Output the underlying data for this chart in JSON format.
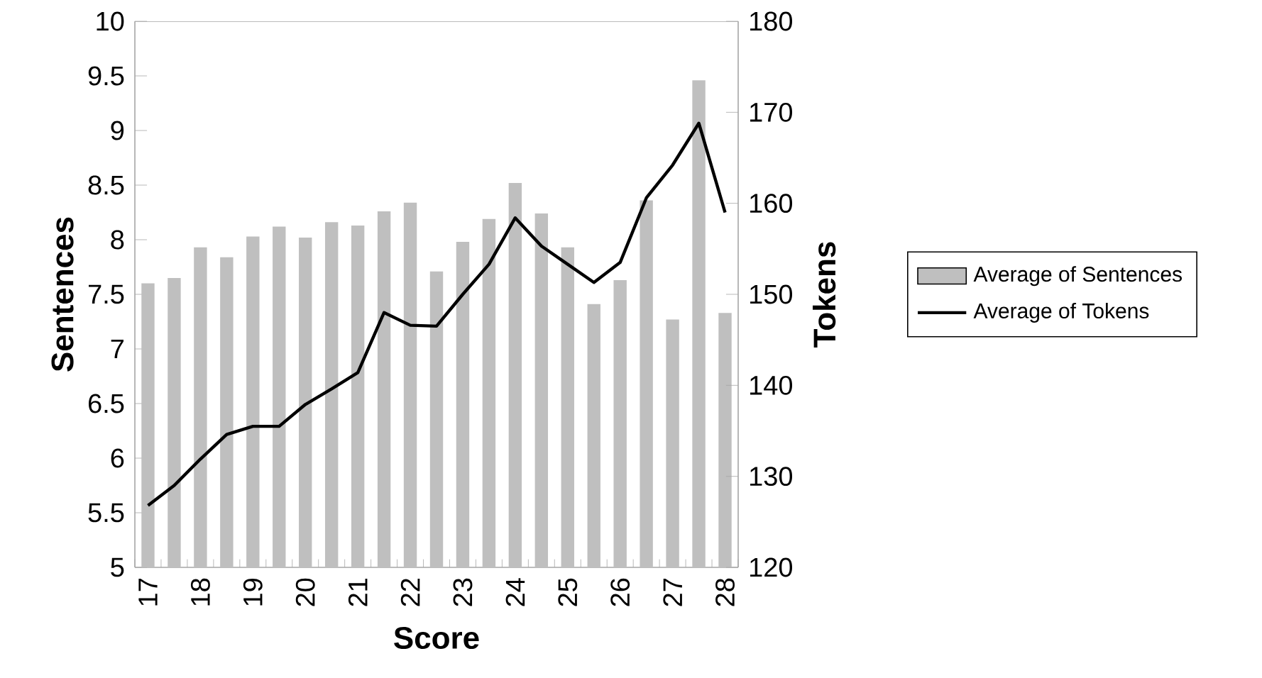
{
  "chart_data": {
    "type": "bar",
    "xlabel": "Score",
    "ylabel": "Sentences",
    "y2label": "Tokens",
    "categories": [
      "17",
      null,
      "18",
      null,
      "19",
      null,
      "20",
      null,
      "21",
      null,
      "22",
      null,
      "23",
      null,
      "24",
      null,
      "25",
      null,
      "26",
      null,
      "27",
      null,
      "28"
    ],
    "series": [
      {
        "name": "Average of Sentences",
        "color": "#bfbfbf",
        "values": [
          7.6,
          7.65,
          7.93,
          7.84,
          8.03,
          8.12,
          8.02,
          8.16,
          8.13,
          8.26,
          8.34,
          7.71,
          7.98,
          8.19,
          8.52,
          8.24,
          7.93,
          7.41,
          7.63,
          8.36,
          7.27,
          9.46,
          7.33
        ]
      },
      {
        "name": "Average of Tokens",
        "type": "line",
        "axis": "y2",
        "color": "#000000",
        "values": [
          126.8,
          129,
          131.9,
          134.6,
          135.5,
          135.5,
          137.9,
          139.6,
          141.4,
          148,
          146.6,
          146.5,
          150,
          153.3,
          158.4,
          155.3,
          153.3,
          151.3,
          153.5,
          160.6,
          164.2,
          168.8,
          159
        ]
      }
    ],
    "ylim": [
      5,
      10
    ],
    "yticks": [
      5,
      5.5,
      6,
      6.5,
      7,
      7.5,
      8,
      8.5,
      9,
      9.5,
      10
    ],
    "y2lim": [
      120,
      180
    ],
    "y2ticks": [
      120,
      130,
      140,
      150,
      160,
      170,
      180
    ],
    "legend": "right",
    "grid": false,
    "marker": "none"
  }
}
